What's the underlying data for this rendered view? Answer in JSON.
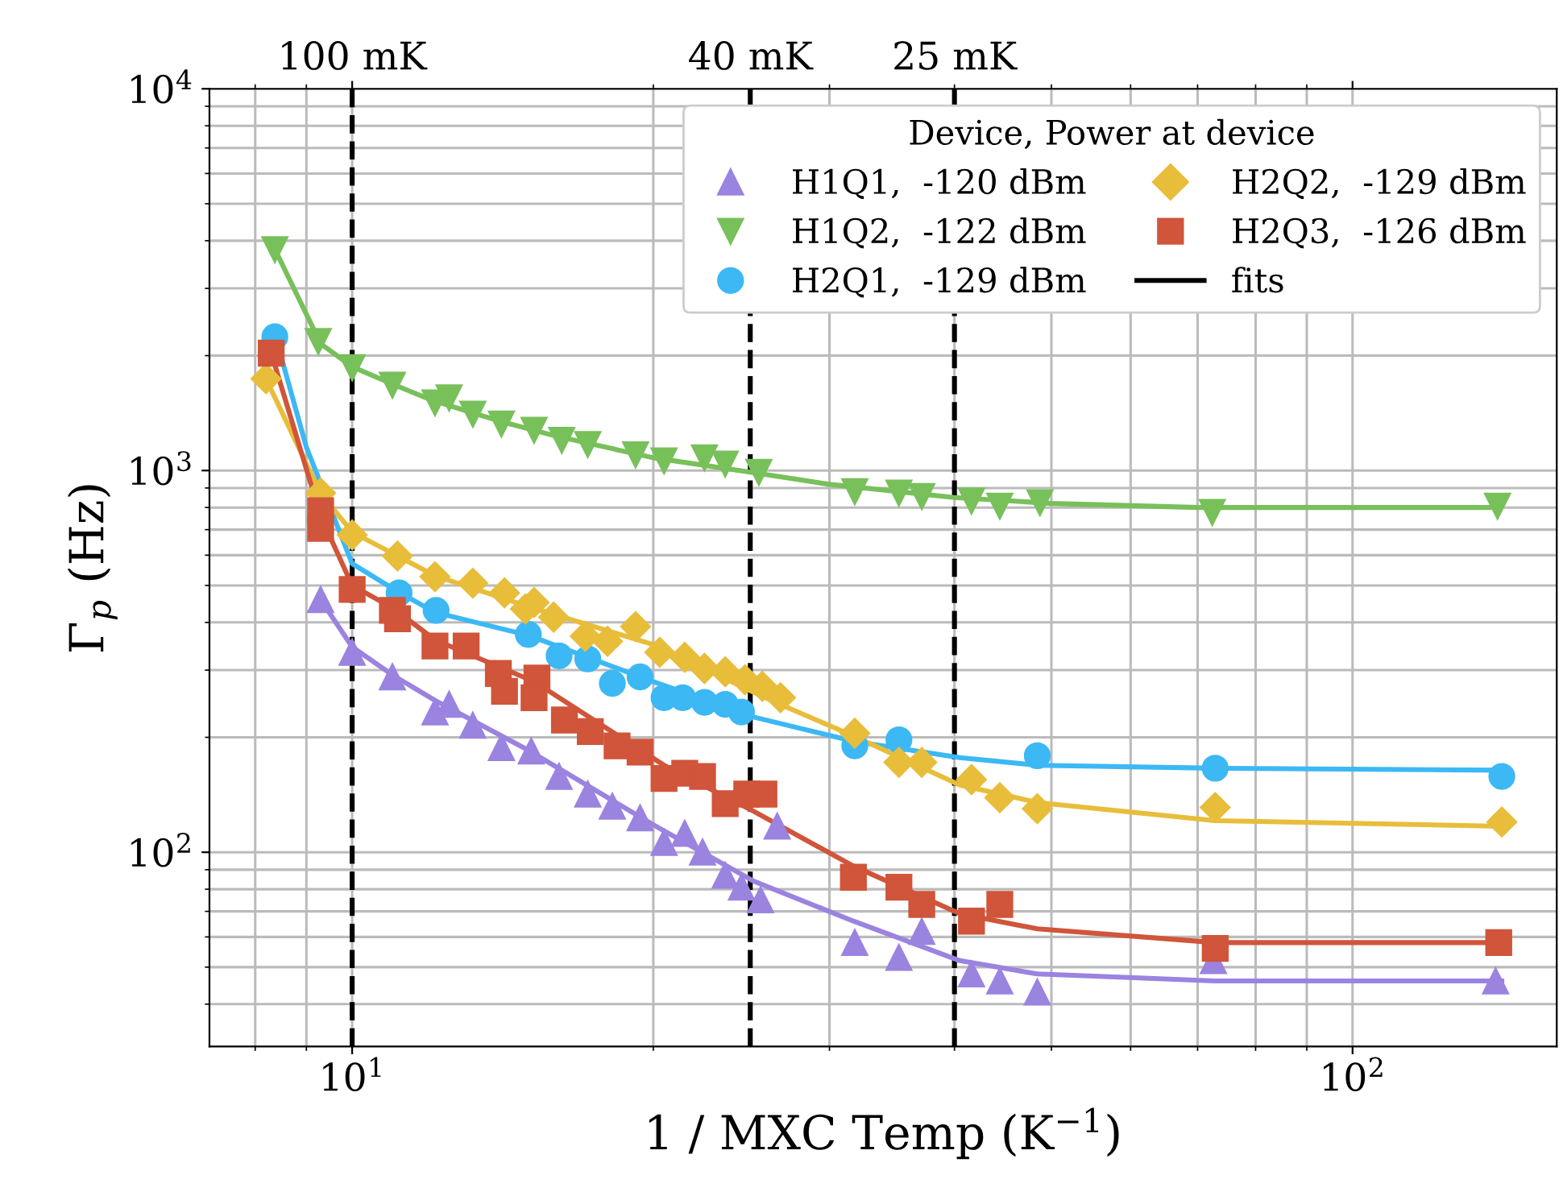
{
  "chart_data": {
    "type": "scatter",
    "xlabel": "1 / MXC Temp (K$^{−1}$)",
    "ylabel": "Γ$_{p}$ (Hz)",
    "legend_title": "Device, Power at device",
    "log": "xy",
    "xlim": [
      7.2,
      160
    ],
    "ylim": [
      31,
      10000
    ],
    "xticks": [
      {
        "value": 10,
        "label": "10$^{1}$"
      },
      {
        "value": 100,
        "label": "10$^{2}$"
      }
    ],
    "yticks": [
      {
        "value": 100,
        "label": "10$^{2}$"
      },
      {
        "value": 1000,
        "label": "10$^{3}$"
      },
      {
        "value": 10000,
        "label": "10$^{4}$"
      }
    ],
    "grid": true,
    "legend": "top right",
    "ref_lines": [
      {
        "axis": "x",
        "value": 10,
        "label": "100 mK",
        "color": "#000000",
        "line_style": "dashed"
      },
      {
        "axis": "x",
        "value": 25,
        "label": "40 mK",
        "color": "#000000",
        "line_style": "dashed"
      },
      {
        "axis": "x",
        "value": 40,
        "label": "25 mK",
        "color": "#000000",
        "line_style": "dashed"
      }
    ],
    "series": [
      {
        "name": "H1Q1,  -120 dBm",
        "color": "#9b83e0",
        "marker": "triangle",
        "x": [
          9.3,
          10.0,
          10.97,
          12.1,
          12.5,
          13.2,
          14.1,
          15.1,
          16.1,
          17.2,
          18.2,
          19.4,
          20.5,
          21.5,
          22.4,
          23.6,
          24.5,
          25.6,
          26.6,
          31.8,
          35.2,
          37.1,
          41.6,
          44.4,
          48.4,
          72.6,
          139
        ],
        "values": [
          459,
          334,
          288,
          233,
          244,
          215,
          188,
          184,
          158,
          142,
          132,
          123,
          106,
          112,
          100,
          87,
          81,
          75,
          117,
          58,
          53,
          62,
          48,
          46,
          43,
          52,
          46
        ]
      },
      {
        "name": "H1Q2,  -122 dBm",
        "color": "#78c05a",
        "marker": "triangle_down",
        "x": [
          8.37,
          9.25,
          10.0,
          10.97,
          12.1,
          12.5,
          13.2,
          14.1,
          15.2,
          16.2,
          17.2,
          19.2,
          20.5,
          22.5,
          23.6,
          25.5,
          31.8,
          35.2,
          37.1,
          41.6,
          44.4,
          48.7,
          72.4,
          139.6
        ],
        "values": [
          3790,
          2180,
          1860,
          1675,
          1505,
          1550,
          1405,
          1325,
          1275,
          1200,
          1170,
          1100,
          1060,
          1080,
          1040,
          990,
          881,
          873,
          855,
          832,
          807,
          824,
          777,
          807
        ]
      },
      {
        "name": "H2Q1,  -129 dBm",
        "color": "#3cb8f5",
        "marker": "circle",
        "x": [
          8.37,
          11.14,
          12.13,
          15.0,
          16.1,
          17.2,
          18.2,
          19.4,
          20.5,
          21.4,
          22.5,
          23.6,
          24.5,
          31.8,
          35.2,
          48.4,
          72.9,
          141
        ],
        "values": [
          2240,
          478,
          430,
          372,
          327,
          321,
          277,
          288,
          254,
          254,
          247,
          244,
          233,
          190,
          197,
          179,
          166,
          158
        ]
      },
      {
        "name": "H2Q2,  -129 dBm",
        "color": "#e8bd3a",
        "marker": "diamond",
        "x": [
          8.2,
          9.3,
          10.0,
          11.1,
          12.1,
          13.2,
          14.2,
          14.9,
          15.2,
          15.9,
          17.1,
          18.0,
          19.2,
          20.3,
          21.5,
          22.5,
          23.6,
          24.7,
          25.7,
          26.8,
          31.8,
          35.2,
          37.1,
          41.6,
          44.4,
          48.4,
          72.9,
          141
        ],
        "values": [
          1740,
          873,
          678,
          597,
          527,
          507,
          478,
          434,
          451,
          413,
          368,
          357,
          390,
          334,
          324,
          303,
          297,
          283,
          272,
          254,
          205,
          172,
          172,
          155,
          139,
          130,
          131,
          120
        ]
      },
      {
        "name": "H2Q3,  -126 dBm",
        "color": "#d0553a",
        "marker": "square",
        "x": [
          8.3,
          9.3,
          9.3,
          10.0,
          10.97,
          11.1,
          12.1,
          13.0,
          14.0,
          14.2,
          15.3,
          15.2,
          16.3,
          17.3,
          18.4,
          19.4,
          20.5,
          21.5,
          22.4,
          23.6,
          24.8,
          25.8,
          31.7,
          35.2,
          37.1,
          41.6,
          44.4,
          72.9,
          140
        ],
        "values": [
          2030,
          705,
          785,
          488,
          430,
          409,
          347,
          347,
          294,
          264,
          286,
          254,
          222,
          207,
          190,
          183,
          156,
          161,
          158,
          134,
          142,
          142,
          86,
          81,
          73,
          66,
          73,
          56,
          58
        ]
      },
      {
        "type": "line",
        "color": "#9b83e0",
        "x": [
          9.3,
          10,
          11,
          12.1,
          15,
          20,
          25.2,
          31.7,
          40.5,
          48.4,
          72.9,
          141
        ],
        "values": [
          459,
          345,
          290,
          250,
          185,
          118,
          84,
          66,
          52,
          48,
          46,
          46
        ]
      },
      {
        "type": "line",
        "color": "#78c05a",
        "x": [
          8.37,
          9.3,
          10,
          11,
          12,
          14,
          16,
          20,
          25,
          30,
          40,
          50,
          70,
          100,
          140
        ],
        "values": [
          3800,
          2150,
          1870,
          1680,
          1530,
          1350,
          1230,
          1080,
          990,
          920,
          850,
          820,
          800,
          800,
          800
        ]
      },
      {
        "type": "line",
        "color": "#3cb8f5",
        "x": [
          8.4,
          9,
          10,
          11.1,
          12.1,
          15,
          20,
          25.2,
          31.8,
          40.5,
          48.4,
          72.9,
          141
        ],
        "values": [
          2200,
          1150,
          570,
          482,
          425,
          370,
          280,
          226,
          195,
          177,
          169,
          166,
          164
        ]
      },
      {
        "type": "line",
        "color": "#e8bd3a",
        "x": [
          8.2,
          9.3,
          10,
          12.1,
          15,
          20,
          25,
          26.4,
          31.8,
          40.5,
          48.4,
          72.9,
          141
        ],
        "values": [
          1740,
          870,
          690,
          530,
          440,
          350,
          265,
          248,
          201,
          150,
          135,
          121,
          117
        ]
      },
      {
        "type": "line",
        "color": "#d0553a",
        "x": [
          8.3,
          9.3,
          10,
          11,
          12.1,
          15.2,
          20.5,
          25.2,
          31.7,
          40.5,
          48.4,
          72.9,
          141
        ],
        "values": [
          2030,
          760,
          500,
          435,
          360,
          280,
          169,
          128,
          92,
          69,
          63,
          58,
          58
        ]
      },
      {
        "name": "fits",
        "type": "line",
        "color": "#000000"
      }
    ]
  }
}
